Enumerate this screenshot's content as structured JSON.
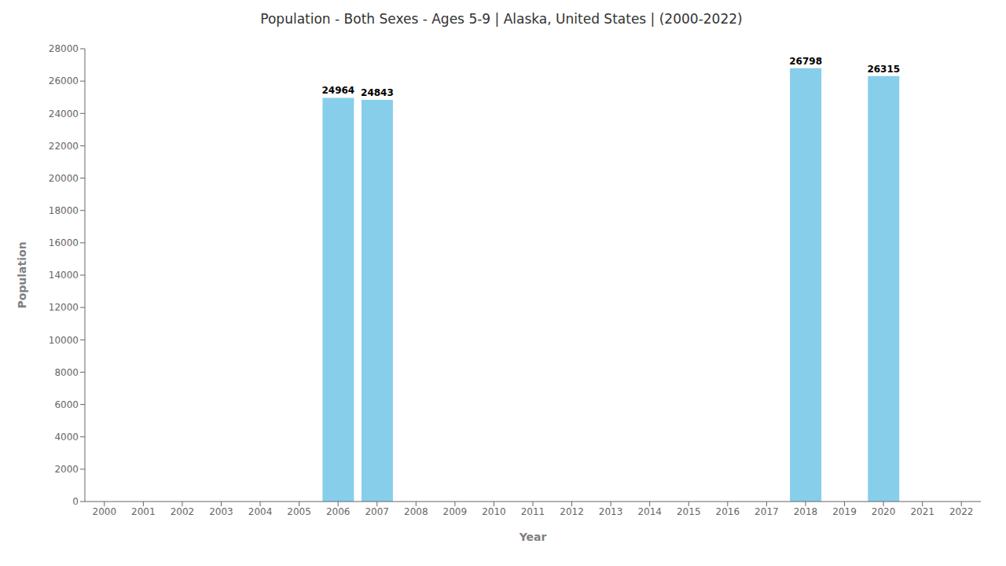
{
  "chart_data": {
    "type": "bar",
    "title": "Population - Both Sexes - Ages 5-9 | Alaska, United States |  (2000-2022)",
    "xlabel": "Year",
    "ylabel": "Population",
    "categories": [
      "2000",
      "2001",
      "2002",
      "2003",
      "2004",
      "2005",
      "2006",
      "2007",
      "2008",
      "2009",
      "2010",
      "2011",
      "2012",
      "2013",
      "2014",
      "2015",
      "2016",
      "2017",
      "2018",
      "2019",
      "2020",
      "2021",
      "2022"
    ],
    "values": [
      0,
      0,
      0,
      0,
      0,
      0,
      24964,
      24843,
      0,
      0,
      0,
      0,
      0,
      0,
      0,
      0,
      0,
      0,
      26798,
      0,
      26315,
      0,
      0
    ],
    "color": "#87CEEB",
    "ylim": [
      0,
      28000
    ],
    "yticks": [
      0,
      2000,
      4000,
      6000,
      8000,
      10000,
      12000,
      14000,
      16000,
      18000,
      20000,
      22000,
      24000,
      26000,
      28000
    ],
    "grid": false,
    "data_labels": true
  }
}
